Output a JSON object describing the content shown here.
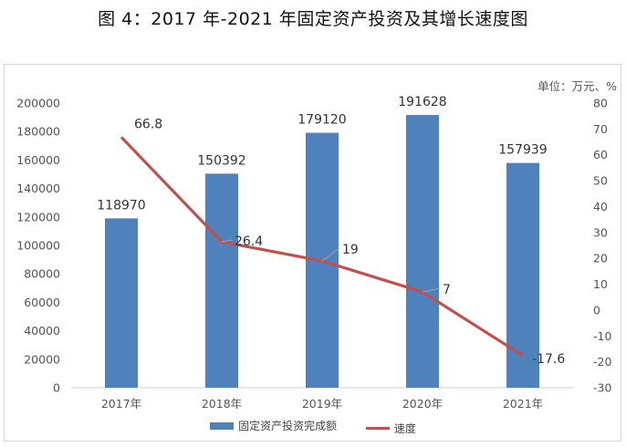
{
  "title": "图 4：2017 年-2021 年固定资产投资及其增长速度图",
  "unit_label": "单位：万元、%",
  "legend": {
    "bar_label": "固定资产投资完成额",
    "line_label": "速度"
  },
  "colors": {
    "bar": "#4f81bd",
    "line": "#c0504d"
  },
  "chart_data": {
    "type": "bar",
    "categories": [
      "2017年",
      "2018年",
      "2019年",
      "2020年",
      "2021年"
    ],
    "series": [
      {
        "name": "固定资产投资完成额",
        "type": "bar",
        "axis": "left",
        "values": [
          118970,
          150392,
          179120,
          191628,
          157939
        ]
      },
      {
        "name": "速度",
        "type": "line",
        "axis": "right",
        "values": [
          66.8,
          26.4,
          19,
          7,
          -17.6
        ]
      }
    ],
    "y_left": {
      "ylim": [
        0,
        200000
      ],
      "ticks": [
        "0",
        "20000",
        "40000",
        "60000",
        "80000",
        "100000",
        "120000",
        "140000",
        "160000",
        "180000",
        "200000"
      ]
    },
    "y_right": {
      "ylim": [
        -30,
        80
      ],
      "ticks": [
        "-30",
        "-20",
        "-10",
        "0",
        "10",
        "20",
        "30",
        "40",
        "50",
        "60",
        "70",
        "80"
      ]
    },
    "bar_labels": [
      "118970",
      "150392",
      "179120",
      "191628",
      "157939"
    ],
    "line_labels": [
      "66.8",
      "26.4",
      "19",
      "7",
      "-17.6"
    ],
    "grid": false,
    "legend_position": "bottom"
  }
}
